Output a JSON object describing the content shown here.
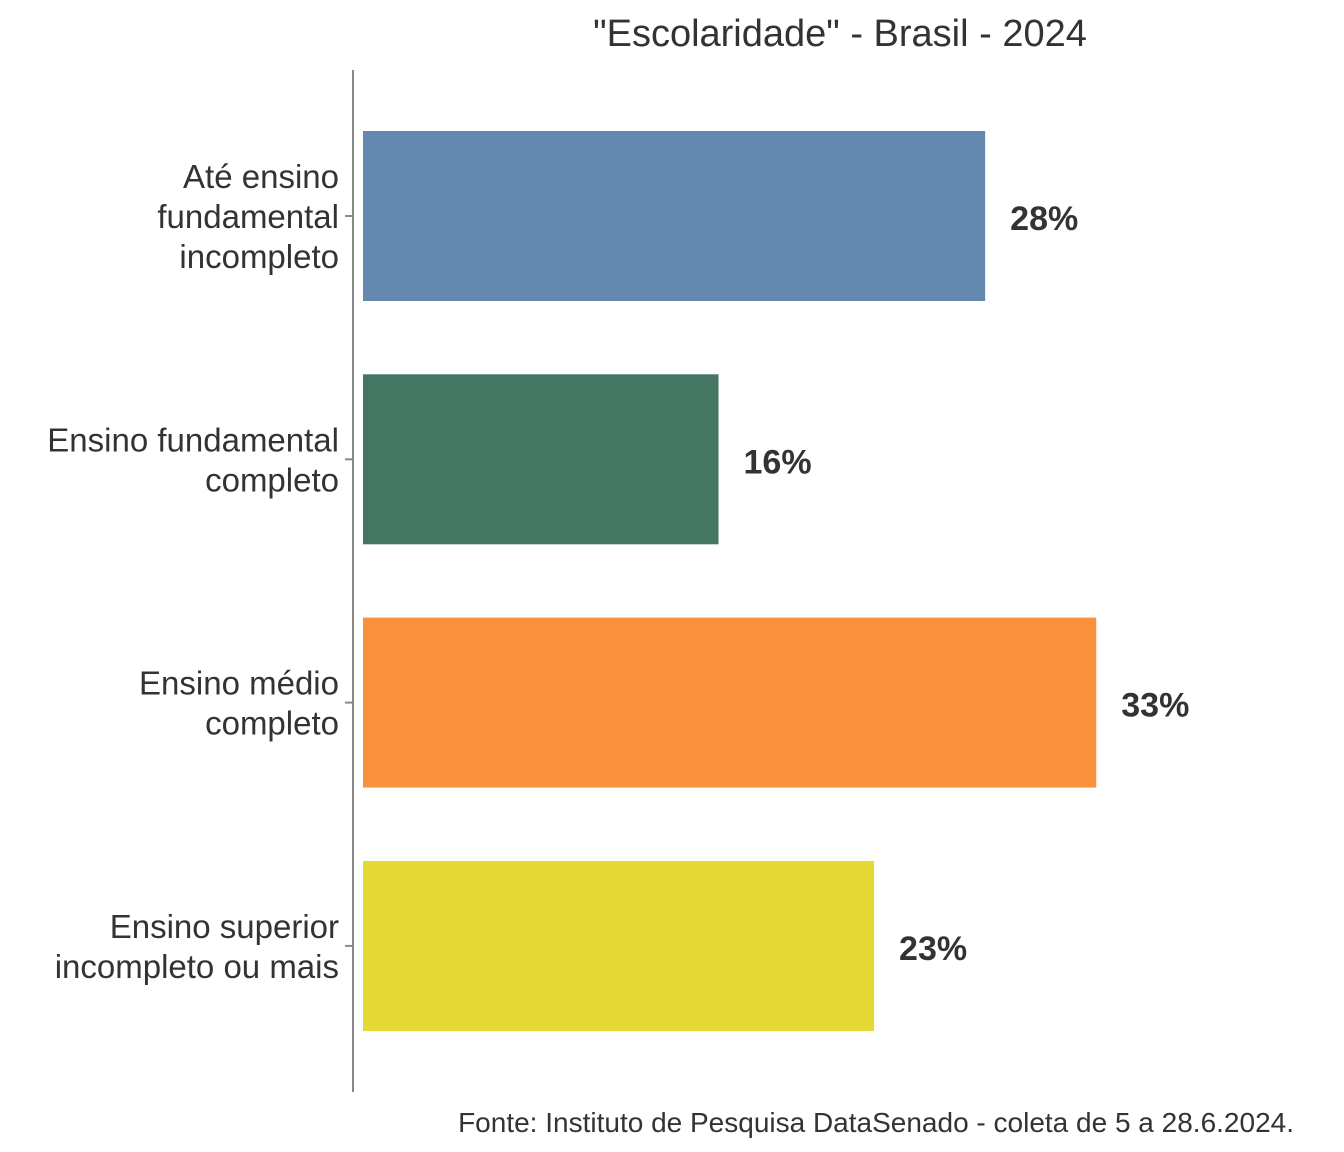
{
  "chart_data": {
    "type": "bar",
    "orientation": "horizontal",
    "title": "\"Escolaridade\" - Brasil - 2024",
    "caption": "Fonte: Instituto de Pesquisa DataSenado - coleta de 5 a 28.6.2024.",
    "categories": [
      "Até ensino fundamental incompleto",
      "Ensino fundamental completo",
      "Ensino médio completo",
      "Ensino superior incompleto ou mais"
    ],
    "category_lines": [
      [
        "Até ensino",
        "fundamental",
        "incompleto"
      ],
      [
        "Ensino fundamental",
        "completo"
      ],
      [
        "Ensino médio",
        "completo"
      ],
      [
        "Ensino superior",
        "incompleto ou mais"
      ]
    ],
    "values": [
      28,
      16,
      33,
      23
    ],
    "value_labels": [
      "28%",
      "16%",
      "33%",
      "23%"
    ],
    "unit": "%",
    "colors": [
      "#6588b0",
      "#457563",
      "#fa913c",
      "#e4d935"
    ],
    "axis_color": "#888888",
    "text_color": "#333333",
    "xlim": [
      0,
      36
    ],
    "grid": false,
    "legend": "none"
  }
}
